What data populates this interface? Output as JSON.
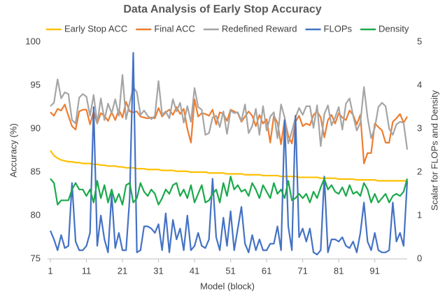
{
  "chart_data": {
    "type": "line",
    "title": "Data Analysis of Early Stop Accuracy",
    "x_label": "Model (block)",
    "y_label": "Accuracy (%)",
    "y2_label": "Scalar for FLOPs and Density",
    "x": [
      1,
      2,
      3,
      4,
      5,
      6,
      7,
      8,
      9,
      10,
      11,
      12,
      13,
      14,
      15,
      16,
      17,
      18,
      19,
      20,
      21,
      22,
      23,
      24,
      25,
      26,
      27,
      28,
      29,
      30,
      31,
      32,
      33,
      34,
      35,
      36,
      37,
      38,
      39,
      40,
      41,
      42,
      43,
      44,
      45,
      46,
      47,
      48,
      49,
      50,
      51,
      52,
      53,
      54,
      55,
      56,
      57,
      58,
      59,
      60,
      61,
      62,
      63,
      64,
      65,
      66,
      67,
      68,
      69,
      70,
      71,
      72,
      73,
      74,
      75,
      76,
      77,
      78,
      79,
      80,
      81,
      82,
      83,
      84,
      85,
      86,
      87,
      88,
      89,
      90,
      91,
      92,
      93,
      94,
      95,
      96,
      97,
      98,
      99,
      100
    ],
    "xlim": [
      1,
      100
    ],
    "xticks": [
      1,
      11,
      21,
      31,
      41,
      51,
      61,
      71,
      81,
      91
    ],
    "ylim": [
      75,
      100
    ],
    "yticks": [
      75,
      80,
      85,
      90,
      95,
      100
    ],
    "y2lim": [
      0,
      5
    ],
    "y2ticks": [
      0,
      1,
      2,
      3,
      4,
      5
    ],
    "legend": "top",
    "series": [
      {
        "name": "Early Stop ACC",
        "color": "#FFC000",
        "values": [
          87.5,
          86.9,
          86.6,
          86.4,
          86.3,
          86.2,
          86.2,
          86.1,
          86.1,
          86.0,
          86.0,
          86.0,
          85.9,
          85.9,
          85.8,
          85.8,
          85.7,
          85.7,
          85.7,
          85.6,
          85.6,
          85.5,
          85.5,
          85.5,
          85.4,
          85.4,
          85.4,
          85.3,
          85.3,
          85.3,
          85.3,
          85.2,
          85.2,
          85.2,
          85.2,
          85.1,
          85.1,
          85.1,
          85.1,
          85.0,
          85.0,
          85.0,
          85.0,
          85.0,
          84.9,
          84.9,
          84.9,
          84.9,
          84.9,
          84.8,
          84.8,
          84.8,
          84.8,
          84.8,
          84.7,
          84.7,
          84.7,
          84.7,
          84.7,
          84.6,
          84.6,
          84.6,
          84.6,
          84.6,
          84.5,
          84.5,
          84.5,
          84.5,
          84.5,
          84.4,
          84.4,
          84.4,
          84.4,
          84.4,
          84.4,
          84.3,
          84.3,
          84.3,
          84.3,
          84.3,
          84.2,
          84.2,
          84.2,
          84.2,
          84.2,
          84.1,
          84.1,
          84.1,
          84.1,
          84.1,
          84.1,
          84.0,
          84.0,
          84.0,
          84.0,
          84.0,
          84.0,
          84.0,
          84.0,
          84.0
        ]
      },
      {
        "name": "Final ACC",
        "color": "#ED7D31",
        "values": [
          91.9,
          91.5,
          92.3,
          92.1,
          92.8,
          91.5,
          90.3,
          89.9,
          92.0,
          92.2,
          92.2,
          90.5,
          92.0,
          90.6,
          91.8,
          91.5,
          90.9,
          91.9,
          91.0,
          92.2,
          91.3,
          93.1,
          92.0,
          91.9,
          92.0,
          91.4,
          91.3,
          91.2,
          91.3,
          91.2,
          92.4,
          91.4,
          91.9,
          92.2,
          91.6,
          92.5,
          91.7,
          92.3,
          90.0,
          88.4,
          93.4,
          91.4,
          91.8,
          91.7,
          91.5,
          92.2,
          90.5,
          91.9,
          91.7,
          90.9,
          92.2,
          92.0,
          91.8,
          90.8,
          91.4,
          92.0,
          91.5,
          90.3,
          91.6,
          90.6,
          91.1,
          88.4,
          91.5,
          90.7,
          88.2,
          91.1,
          89.2,
          88.3,
          90.8,
          91.5,
          90.3,
          90.6,
          90.4,
          91.6,
          92.0,
          91.3,
          89.0,
          91.0,
          91.6,
          90.6,
          91.8,
          91.3,
          91.0,
          92.1,
          91.6,
          90.5,
          91.6,
          86.0,
          87.2,
          87.2,
          90.6,
          90.2,
          89.8,
          88.4,
          88.4,
          90.8,
          91.2,
          91.7,
          90.7,
          91.4
        ]
      },
      {
        "name": "Redefined Reward",
        "color": "#A5A5A5",
        "values": [
          92.6,
          93.0,
          95.7,
          93.5,
          94.2,
          94.0,
          91.0,
          90.6,
          93.6,
          94.0,
          93.7,
          91.5,
          93.9,
          90.6,
          93.5,
          91.0,
          92.9,
          91.8,
          93.4,
          91.5,
          96.2,
          91.1,
          93.0,
          94.8,
          94.2,
          91.6,
          92.1,
          91.5,
          91.1,
          91.5,
          95.5,
          91.6,
          92.0,
          91.2,
          93.4,
          92.0,
          93.0,
          90.7,
          92.6,
          90.8,
          94.7,
          92.5,
          92.2,
          89.3,
          89.5,
          91.3,
          91.5,
          90.2,
          92.0,
          89.4,
          92.1,
          91.8,
          91.9,
          90.9,
          92.8,
          89.5,
          90.3,
          92.3,
          89.3,
          92.6,
          89.8,
          91.4,
          91.9,
          88.9,
          92.8,
          91.3,
          88.3,
          89.7,
          91.3,
          92.4,
          91.6,
          92.6,
          92.6,
          90.1,
          92.7,
          88.0,
          91.7,
          92.7,
          90.4,
          91.3,
          92.5,
          89.9,
          92.9,
          93.5,
          91.5,
          89.8,
          90.7,
          94.8,
          91.3,
          88.9,
          90.1,
          92.5,
          93.0,
          92.6,
          90.0,
          89.3,
          90.5,
          90.8,
          90.7,
          87.6
        ]
      },
      {
        "name": "FLOPs",
        "color": "#4472C4",
        "axis": "y2",
        "values": [
          0.65,
          0.45,
          0.2,
          0.55,
          0.25,
          0.3,
          1.75,
          0.4,
          0.2,
          0.2,
          0.3,
          0.6,
          3.5,
          0.3,
          1.0,
          0.45,
          0.15,
          1.5,
          0.25,
          0.6,
          0.2,
          0.2,
          1.4,
          4.75,
          0.15,
          0.2,
          0.75,
          0.75,
          0.7,
          0.6,
          0.8,
          0.2,
          1.05,
          0.15,
          0.9,
          0.45,
          0.7,
          0.2,
          1.0,
          0.2,
          0.3,
          0.6,
          0.3,
          0.25,
          0.45,
          1.85,
          0.5,
          0.2,
          0.95,
          0.3,
          1.1,
          0.2,
          0.7,
          1.2,
          0.35,
          0.15,
          0.55,
          0.2,
          0.45,
          0.2,
          0.2,
          0.35,
          0.35,
          0.75,
          0.2,
          3.2,
          0.75,
          0.2,
          3.3,
          0.5,
          0.7,
          0.4,
          0.7,
          0.15,
          0.1,
          0.2,
          1.9,
          0.15,
          0.45,
          0.45,
          0.4,
          0.5,
          0.3,
          0.25,
          0.4,
          0.15,
          0.6,
          1.3,
          0.4,
          0.2,
          0.6,
          0.2,
          0.15,
          0.15,
          0.2,
          1.3,
          0.4,
          0.6,
          0.3,
          1.8
        ]
      },
      {
        "name": "Density",
        "color": "#1BA94C",
        "axis": "y2",
        "values": [
          1.85,
          1.75,
          1.25,
          1.35,
          1.35,
          1.35,
          1.6,
          1.75,
          1.6,
          1.6,
          1.45,
          1.6,
          1.3,
          1.8,
          1.4,
          1.7,
          1.3,
          1.6,
          1.3,
          1.5,
          1.25,
          1.7,
          1.75,
          1.3,
          1.4,
          1.75,
          1.55,
          1.45,
          1.6,
          1.5,
          1.25,
          1.4,
          1.6,
          1.5,
          1.7,
          1.75,
          1.45,
          1.6,
          1.4,
          1.7,
          1.3,
          1.5,
          1.7,
          1.3,
          1.35,
          1.5,
          1.6,
          1.3,
          1.75,
          1.45,
          1.9,
          1.6,
          1.7,
          1.55,
          1.6,
          1.45,
          1.75,
          1.6,
          1.4,
          1.7,
          1.55,
          1.4,
          1.75,
          1.5,
          1.6,
          1.4,
          1.8,
          1.35,
          1.4,
          1.5,
          1.4,
          1.5,
          1.3,
          1.55,
          1.4,
          1.65,
          1.85,
          1.6,
          1.7,
          1.55,
          1.5,
          1.65,
          1.45,
          1.7,
          1.5,
          1.55,
          1.45,
          1.75,
          1.6,
          1.3,
          1.5,
          1.3,
          1.4,
          1.5,
          1.3,
          1.45,
          1.5,
          1.45,
          1.55,
          1.85
        ]
      }
    ]
  }
}
